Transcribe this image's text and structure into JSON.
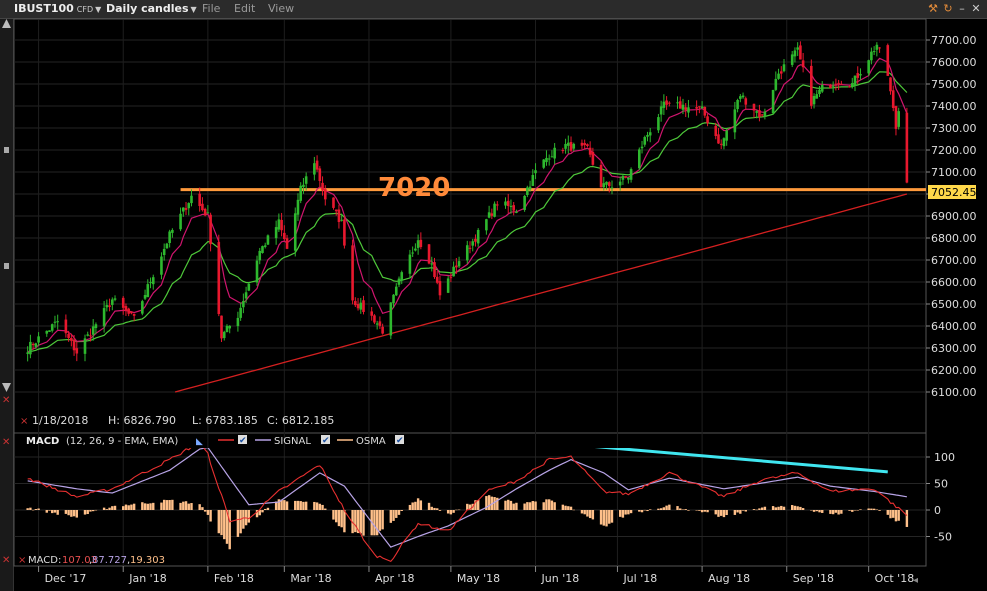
{
  "toolbar": {
    "symbol": "IBUST100",
    "symbol_tag": "CFD",
    "interval": "Daily candles",
    "menu": [
      "File",
      "Edit",
      "View"
    ]
  },
  "price_panel": {
    "info_date": "1/18/2018",
    "info_high": "H: 6826.790",
    "info_low": "L: 6783.185",
    "info_close": "C: 6812.185",
    "current_price": "7052.45",
    "annotation": "7020",
    "support_level": 7020,
    "ylim": [
      6020,
      7760
    ],
    "y_ticks": [
      "6100.00",
      "6200.00",
      "6300.00",
      "6400.00",
      "6500.00",
      "6600.00",
      "6700.00",
      "6800.00",
      "6900.00",
      "7000.00",
      "7100.00",
      "7200.00",
      "7300.00",
      "7400.00",
      "7500.00",
      "7600.00",
      "7700.00"
    ]
  },
  "macd_panel": {
    "name": "MACD",
    "params": "(12, 26, 9 - EMA, EMA)",
    "signal_label": "SIGNAL",
    "osma_label": "OSMA",
    "y_ticks": [
      "100",
      "50",
      "0",
      "-50"
    ],
    "footer_label": "MACD:",
    "footer_macd": "107.03",
    "footer_signal": "87.727",
    "footer_osma": "19.303",
    "ylim": [
      -70,
      125
    ]
  },
  "x_axis": {
    "labels": [
      "Dec '17",
      "Jan '18",
      "Feb '18",
      "Mar '18",
      "Apr '18",
      "May '18",
      "Jun '18",
      "Jul '18",
      "Aug '18",
      "Sep '18",
      "Oct '18"
    ]
  },
  "colors": {
    "up": "#2eb82e",
    "down": "#e8182e",
    "ema_fast": "#d0156e",
    "ema_slow": "#4ec83a",
    "ma_long": "#d42020",
    "support": "#ff9a3c",
    "macd": "#e83030",
    "signal": "#b7a3e6",
    "osma": "#ffc08a",
    "trend": "#40e6f0"
  },
  "chart_data": {
    "type": "candlestick",
    "title": "",
    "anchors": [
      {
        "x": "2017-11-27",
        "close": 6300
      },
      {
        "x": "2017-12-08",
        "close": 6420
      },
      {
        "x": "2017-12-15",
        "close": 6280
      },
      {
        "x": "2017-12-28",
        "close": 6520
      },
      {
        "x": "2018-01-05",
        "close": 6430
      },
      {
        "x": "2018-01-18",
        "close": 6812
      },
      {
        "x": "2018-01-26",
        "close": 6990
      },
      {
        "x": "2018-02-01",
        "close": 6900
      },
      {
        "x": "2018-02-06",
        "close": 6350
      },
      {
        "x": "2018-02-12",
        "close": 6450
      },
      {
        "x": "2018-02-20",
        "close": 6740
      },
      {
        "x": "2018-02-27",
        "close": 6870
      },
      {
        "x": "2018-03-02",
        "close": 6750
      },
      {
        "x": "2018-03-07",
        "close": 7020
      },
      {
        "x": "2018-03-12",
        "close": 7150
      },
      {
        "x": "2018-03-16",
        "close": 6980
      },
      {
        "x": "2018-03-22",
        "close": 6870
      },
      {
        "x": "2018-03-26",
        "close": 6520
      },
      {
        "x": "2018-04-03",
        "close": 6430
      },
      {
        "x": "2018-04-06",
        "close": 6380
      },
      {
        "x": "2018-04-12",
        "close": 6600
      },
      {
        "x": "2018-04-19",
        "close": 6800
      },
      {
        "x": "2018-04-24",
        "close": 6680
      },
      {
        "x": "2018-04-27",
        "close": 6540
      },
      {
        "x": "2018-05-04",
        "close": 6700
      },
      {
        "x": "2018-05-11",
        "close": 6820
      },
      {
        "x": "2018-05-18",
        "close": 6960
      },
      {
        "x": "2018-05-25",
        "close": 6930
      },
      {
        "x": "2018-06-01",
        "close": 7100
      },
      {
        "x": "2018-06-06",
        "close": 7180
      },
      {
        "x": "2018-06-12",
        "close": 7220
      },
      {
        "x": "2018-06-20",
        "close": 7200
      },
      {
        "x": "2018-06-25",
        "close": 7040
      },
      {
        "x": "2018-06-29",
        "close": 7040
      },
      {
        "x": "2018-07-05",
        "close": 7080
      },
      {
        "x": "2018-07-11",
        "close": 7250
      },
      {
        "x": "2018-07-18",
        "close": 7400
      },
      {
        "x": "2018-07-25",
        "close": 7400
      },
      {
        "x": "2018-08-01",
        "close": 7380
      },
      {
        "x": "2018-08-08",
        "close": 7220
      },
      {
        "x": "2018-08-15",
        "close": 7450
      },
      {
        "x": "2018-08-23",
        "close": 7350
      },
      {
        "x": "2018-08-29",
        "close": 7550
      },
      {
        "x": "2018-09-05",
        "close": 7650
      },
      {
        "x": "2018-09-10",
        "close": 7420
      },
      {
        "x": "2018-09-14",
        "close": 7480
      },
      {
        "x": "2018-09-20",
        "close": 7520
      },
      {
        "x": "2018-09-25",
        "close": 7500
      },
      {
        "x": "2018-10-01",
        "close": 7620
      },
      {
        "x": "2018-10-04",
        "close": 7680
      },
      {
        "x": "2018-10-08",
        "close": 7540
      },
      {
        "x": "2018-10-11",
        "close": 7300
      },
      {
        "x": "2018-10-12",
        "close": 7380
      },
      {
        "x": "2018-10-15",
        "close": 7052
      }
    ],
    "macd_anchors": [
      {
        "x": "2017-11-27",
        "macd": 60,
        "signal": 55
      },
      {
        "x": "2017-12-15",
        "macd": 25,
        "signal": 40
      },
      {
        "x": "2017-12-28",
        "macd": 40,
        "signal": 32
      },
      {
        "x": "2018-01-18",
        "macd": 95,
        "signal": 75
      },
      {
        "x": "2018-01-29",
        "macd": 128,
        "signal": 115
      },
      {
        "x": "2018-02-01",
        "macd": 105,
        "signal": 118
      },
      {
        "x": "2018-02-09",
        "macd": -20,
        "signal": 60
      },
      {
        "x": "2018-02-16",
        "macd": -15,
        "signal": 10
      },
      {
        "x": "2018-02-27",
        "macd": 35,
        "signal": 15
      },
      {
        "x": "2018-03-14",
        "macd": 85,
        "signal": 70
      },
      {
        "x": "2018-03-23",
        "macd": 0,
        "signal": 45
      },
      {
        "x": "2018-04-03",
        "macd": -85,
        "signal": -30
      },
      {
        "x": "2018-04-09",
        "macd": -95,
        "signal": -70
      },
      {
        "x": "2018-04-19",
        "macd": -25,
        "signal": -50
      },
      {
        "x": "2018-04-30",
        "macd": -40,
        "signal": -30
      },
      {
        "x": "2018-05-14",
        "macd": 35,
        "signal": 5
      },
      {
        "x": "2018-05-25",
        "macd": 55,
        "signal": 40
      },
      {
        "x": "2018-06-06",
        "macd": 95,
        "signal": 75
      },
      {
        "x": "2018-06-14",
        "macd": 100,
        "signal": 95
      },
      {
        "x": "2018-06-26",
        "macd": 35,
        "signal": 70
      },
      {
        "x": "2018-07-05",
        "macd": 30,
        "signal": 38
      },
      {
        "x": "2018-07-20",
        "macd": 70,
        "signal": 60
      },
      {
        "x": "2018-08-09",
        "macd": 25,
        "signal": 40
      },
      {
        "x": "2018-08-22",
        "macd": 55,
        "signal": 50
      },
      {
        "x": "2018-09-05",
        "macd": 70,
        "signal": 62
      },
      {
        "x": "2018-09-17",
        "macd": 35,
        "signal": 45
      },
      {
        "x": "2018-10-03",
        "macd": 40,
        "signal": 35
      },
      {
        "x": "2018-10-15",
        "macd": -10,
        "signal": 25
      }
    ],
    "trendline": [
      {
        "x": "2018-06-11",
        "macd": 125
      },
      {
        "x": "2018-10-08",
        "macd": 72
      }
    ]
  }
}
